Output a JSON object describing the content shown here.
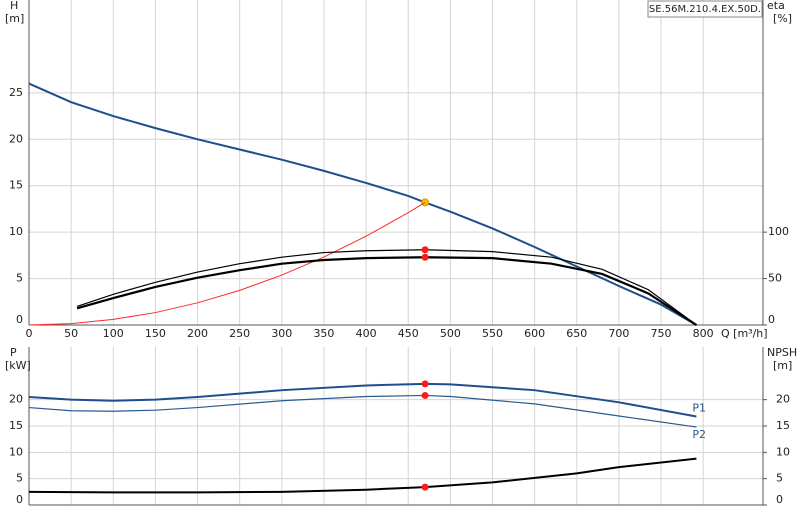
{
  "chart_data": [
    {
      "type": "line",
      "title": "SE.56M.210.4.EX.50D.",
      "ylabel": "H",
      "yunit": "[m]",
      "y2label": "eta",
      "y2unit": "[%]",
      "xlabel": "Q [m³/h]",
      "xlim": [
        0,
        871
      ],
      "xticks": [
        0,
        50,
        100,
        150,
        200,
        250,
        300,
        350,
        400,
        450,
        500,
        550,
        600,
        650,
        700,
        750,
        800
      ],
      "ylim": [
        0,
        35
      ],
      "yticks": [
        0,
        5,
        10,
        15,
        20,
        25
      ],
      "y2lim": [
        0,
        350
      ],
      "y2ticks": [
        0,
        50,
        100
      ],
      "grid": true,
      "series": [
        {
          "color": "#1f4e8c",
          "x": [
            0,
            50,
            100,
            150,
            200,
            250,
            300,
            350,
            400,
            450,
            470,
            500,
            550,
            600,
            650,
            700,
            750,
            792
          ],
          "values": [
            26,
            24,
            22.5,
            21.2,
            20,
            18.9,
            17.8,
            16.6,
            15.3,
            13.9,
            13.2,
            12.2,
            10.4,
            8.4,
            6.3,
            4.2,
            2.2,
            0
          ],
          "marker": {
            "x": 470,
            "value": 13.2,
            "color": "#f5c400"
          }
        },
        {
          "color": "#ff2a2a",
          "x": [
            0,
            50,
            100,
            150,
            200,
            250,
            300,
            350,
            400,
            450,
            470
          ],
          "values": [
            0,
            0.15,
            0.6,
            1.34,
            2.39,
            3.73,
            5.38,
            7.32,
            9.56,
            12.1,
            13.2
          ]
        },
        {
          "color": "#000000",
          "axis": "y2",
          "x": [
            57,
            100,
            150,
            200,
            250,
            300,
            350,
            400,
            470,
            550,
            620,
            680,
            735,
            792
          ],
          "values": [
            20,
            33,
            46,
            57,
            66,
            73,
            78,
            80,
            81,
            79,
            73,
            60,
            38,
            0
          ],
          "marker": {
            "x": 470,
            "value": 81,
            "color": "#ff1a1a"
          }
        },
        {
          "color": "#000000",
          "axis": "y2",
          "x": [
            57,
            100,
            150,
            200,
            250,
            300,
            350,
            400,
            470,
            550,
            620,
            680,
            735,
            792
          ],
          "values": [
            18,
            29,
            41,
            51,
            59,
            66,
            70,
            72,
            73,
            72,
            66,
            55,
            34,
            0
          ],
          "marker": {
            "x": 470,
            "value": 73,
            "color": "#ff1a1a"
          }
        }
      ]
    },
    {
      "type": "line",
      "ylabel": "P",
      "yunit": "[kW]",
      "y2label": "NPSH",
      "y2unit": "[m]",
      "xlim": [
        0,
        871
      ],
      "ylim": [
        0,
        30
      ],
      "yticks": [
        0,
        5,
        10,
        15,
        20
      ],
      "y2lim": [
        0,
        30
      ],
      "y2ticks": [
        0,
        5,
        10,
        15,
        20
      ],
      "grid": true,
      "series": [
        {
          "name": "P1",
          "color": "#1f4e8c",
          "x": [
            0,
            50,
            100,
            150,
            200,
            300,
            400,
            470,
            500,
            600,
            700,
            792
          ],
          "values": [
            20.5,
            20,
            19.8,
            20,
            20.5,
            21.8,
            22.7,
            23,
            22.9,
            21.8,
            19.5,
            16.8
          ],
          "marker": {
            "x": 470,
            "value": 23,
            "color": "#ff1a1a"
          }
        },
        {
          "name": "P2",
          "color": "#2a5a90",
          "x": [
            0,
            50,
            100,
            150,
            200,
            300,
            400,
            470,
            500,
            600,
            700,
            792
          ],
          "values": [
            18.5,
            17.9,
            17.8,
            18,
            18.5,
            19.8,
            20.6,
            20.8,
            20.6,
            19.2,
            16.9,
            14.8
          ],
          "marker": {
            "x": 470,
            "value": 20.8,
            "color": "#ff1a1a"
          }
        },
        {
          "color": "#000000",
          "axis": "y2",
          "x": [
            0,
            100,
            200,
            300,
            400,
            470,
            550,
            650,
            700,
            792
          ],
          "values": [
            2.5,
            2.4,
            2.4,
            2.5,
            2.9,
            3.4,
            4.3,
            6,
            7.2,
            8.8
          ],
          "marker": {
            "x": 470,
            "value": 3.4,
            "color": "#ff1a1a"
          }
        }
      ]
    }
  ]
}
